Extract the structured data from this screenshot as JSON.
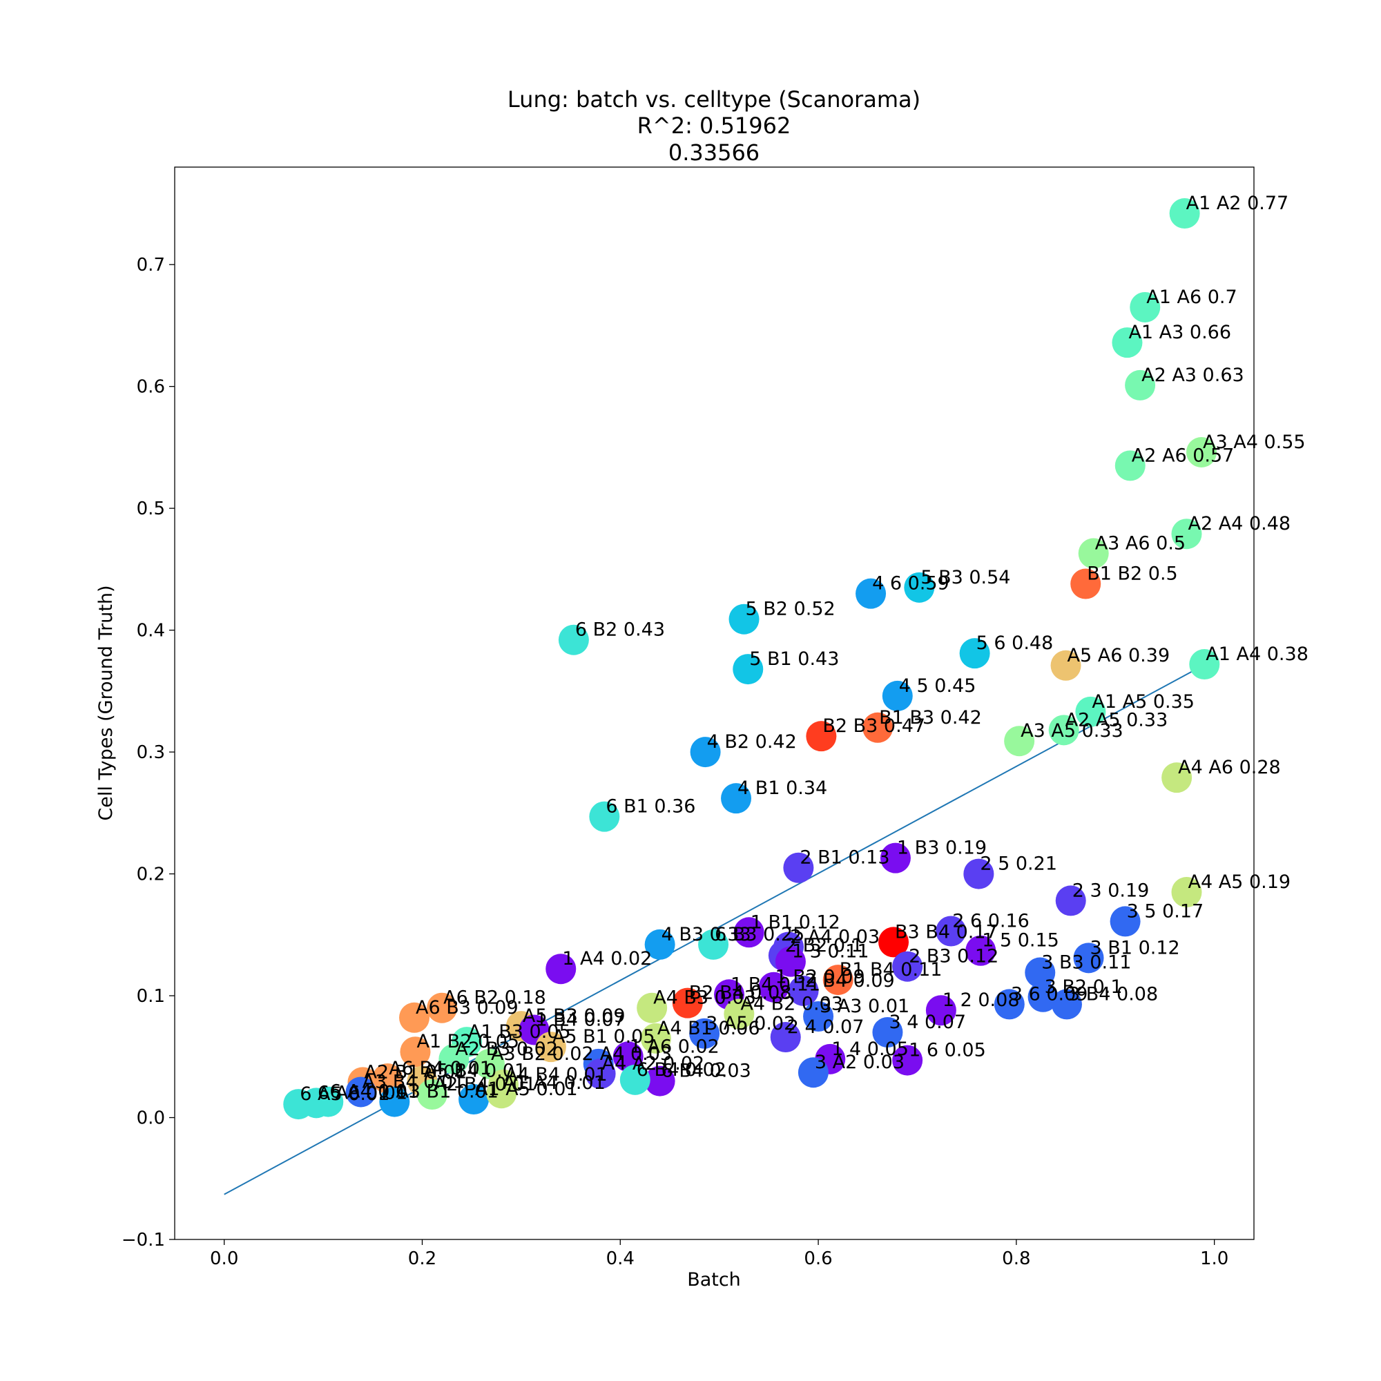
{
  "chart_data": {
    "type": "scatter",
    "title_lines": [
      "Lung: batch vs. celltype (Scanorama)",
      "R^2: 0.51962",
      "0.33566"
    ],
    "xlabel": "Batch",
    "ylabel": "Cell Types (Ground Truth)",
    "xlim": [
      -0.05,
      1.04
    ],
    "ylim": [
      -0.1,
      0.78
    ],
    "x_ticks": [
      0.0,
      0.2,
      0.4,
      0.6,
      0.8,
      1.0
    ],
    "x_tick_labels": [
      "0.0",
      "0.2",
      "0.4",
      "0.6",
      "0.8",
      "1.0"
    ],
    "y_ticks": [
      -0.1,
      0.0,
      0.1,
      0.2,
      0.3,
      0.4,
      0.5,
      0.6,
      0.7
    ],
    "y_tick_labels": [
      "−0.1",
      "0.0",
      "0.1",
      "0.2",
      "0.3",
      "0.4",
      "0.5",
      "0.6",
      "0.7"
    ],
    "grid": false,
    "fit_line": {
      "x": [
        0.0,
        1.0
      ],
      "y": [
        -0.063,
        0.376
      ],
      "color": "#1f77b4"
    },
    "points": [
      {
        "x": 0.97,
        "y": 0.742,
        "label": "A1 A2 0.77",
        "color": "#5cf5c1"
      },
      {
        "x": 0.93,
        "y": 0.665,
        "label": "A1 A6 0.7",
        "color": "#5cf5c1"
      },
      {
        "x": 0.912,
        "y": 0.636,
        "label": "A1 A3 0.66",
        "color": "#5cf5c1"
      },
      {
        "x": 0.925,
        "y": 0.601,
        "label": "A2 A3 0.63",
        "color": "#78f8b0"
      },
      {
        "x": 0.987,
        "y": 0.546,
        "label": "A3 A4 0.55",
        "color": "#98f89c"
      },
      {
        "x": 0.915,
        "y": 0.535,
        "label": "A2 A6 0.57",
        "color": "#78f8b0"
      },
      {
        "x": 0.972,
        "y": 0.479,
        "label": "A2 A4 0.48",
        "color": "#78f8b0"
      },
      {
        "x": 0.878,
        "y": 0.463,
        "label": "A3 A6 0.5",
        "color": "#98f89c"
      },
      {
        "x": 0.87,
        "y": 0.438,
        "label": "B1 B2 0.5",
        "color": "#ff6a3a"
      },
      {
        "x": 0.99,
        "y": 0.372,
        "label": "A1 A4 0.38",
        "color": "#5cf5c1"
      },
      {
        "x": 0.85,
        "y": 0.371,
        "label": "A5 A6 0.39",
        "color": "#edc370"
      },
      {
        "x": 0.875,
        "y": 0.333,
        "label": "A1 A5 0.35",
        "color": "#5cf5c1"
      },
      {
        "x": 0.848,
        "y": 0.318,
        "label": "A2 A5 0.33",
        "color": "#78f8b0"
      },
      {
        "x": 0.803,
        "y": 0.309,
        "label": "A3 A5 0.33",
        "color": "#98f89c"
      },
      {
        "x": 0.962,
        "y": 0.279,
        "label": "A4 A6 0.28",
        "color": "#c5e87f"
      },
      {
        "x": 0.972,
        "y": 0.185,
        "label": "A4 A5 0.19",
        "color": "#c5e87f"
      },
      {
        "x": 0.653,
        "y": 0.43,
        "label": "4 6 0.59",
        "color": "#139df0"
      },
      {
        "x": 0.702,
        "y": 0.435,
        "label": "5 B3 0.54",
        "color": "#12c5e6"
      },
      {
        "x": 0.525,
        "y": 0.409,
        "label": "5 B2 0.52",
        "color": "#12c5e6"
      },
      {
        "x": 0.353,
        "y": 0.392,
        "label": "6 B2 0.43",
        "color": "#3ce4d6"
      },
      {
        "x": 0.758,
        "y": 0.381,
        "label": "5 6 0.48",
        "color": "#12c5e6"
      },
      {
        "x": 0.529,
        "y": 0.368,
        "label": "5 B1 0.43",
        "color": "#12c5e6"
      },
      {
        "x": 0.68,
        "y": 0.346,
        "label": "4 5 0.45",
        "color": "#139df0"
      },
      {
        "x": 0.603,
        "y": 0.313,
        "label": "B2 B3 0.47",
        "color": "#ff3d1f"
      },
      {
        "x": 0.66,
        "y": 0.32,
        "label": "B1 B3 0.42",
        "color": "#ff6a3a"
      },
      {
        "x": 0.486,
        "y": 0.3,
        "label": "4 B2 0.42",
        "color": "#139df0"
      },
      {
        "x": 0.517,
        "y": 0.262,
        "label": "4 B1 0.34",
        "color": "#139df0"
      },
      {
        "x": 0.384,
        "y": 0.247,
        "label": "6 B1 0.36",
        "color": "#3ce4d6"
      },
      {
        "x": 0.678,
        "y": 0.213,
        "label": "1 B3 0.19",
        "color": "#7a0df0"
      },
      {
        "x": 0.58,
        "y": 0.205,
        "label": "2 B1 0.13",
        "color": "#5a3ff2"
      },
      {
        "x": 0.762,
        "y": 0.2,
        "label": "2 5 0.21",
        "color": "#5a3ff2"
      },
      {
        "x": 0.855,
        "y": 0.178,
        "label": "2 3 0.19",
        "color": "#5a3ff2"
      },
      {
        "x": 0.91,
        "y": 0.161,
        "label": "3 5 0.17",
        "color": "#3169f2"
      },
      {
        "x": 0.734,
        "y": 0.153,
        "label": "2 6 0.16",
        "color": "#5a3ff2"
      },
      {
        "x": 0.53,
        "y": 0.152,
        "label": "1 B1 0.12",
        "color": "#7a0df0"
      },
      {
        "x": 0.44,
        "y": 0.142,
        "label": "4 B3 0.33",
        "color": "#139df0"
      },
      {
        "x": 0.494,
        "y": 0.142,
        "label": "6 B3 0.25",
        "color": "#3ce4d6"
      },
      {
        "x": 0.676,
        "y": 0.144,
        "label": "B3 B4 0.17",
        "color": "#ff0000"
      },
      {
        "x": 0.57,
        "y": 0.14,
        "label": "2 A4 0.03",
        "color": "#5a3ff2"
      },
      {
        "x": 0.764,
        "y": 0.137,
        "label": "1 5 0.15",
        "color": "#7a0df0"
      },
      {
        "x": 0.565,
        "y": 0.133,
        "label": "2 B2 0.1",
        "color": "#5a3ff2"
      },
      {
        "x": 0.572,
        "y": 0.128,
        "label": "1 3 0.11",
        "color": "#7a0df0"
      },
      {
        "x": 0.873,
        "y": 0.131,
        "label": "3 B1 0.12",
        "color": "#3169f2"
      },
      {
        "x": 0.69,
        "y": 0.124,
        "label": "2 B3 0.12",
        "color": "#5a3ff2"
      },
      {
        "x": 0.824,
        "y": 0.119,
        "label": "3 B3 0.11",
        "color": "#3169f2"
      },
      {
        "x": 0.34,
        "y": 0.122,
        "label": "1 A4 0.02",
        "color": "#7a0df0"
      },
      {
        "x": 0.62,
        "y": 0.113,
        "label": "B1 B4 0.11",
        "color": "#ff6a3a"
      },
      {
        "x": 0.585,
        "y": 0.104,
        "label": "2 B4 0.09",
        "color": "#5a3ff2"
      },
      {
        "x": 0.555,
        "y": 0.107,
        "label": "1 B2 0.09",
        "color": "#7a0df0"
      },
      {
        "x": 0.51,
        "y": 0.101,
        "label": "1 B4 0.11",
        "color": "#7a0df0"
      },
      {
        "x": 0.827,
        "y": 0.099,
        "label": "3 B2 0.1",
        "color": "#3169f2"
      },
      {
        "x": 0.793,
        "y": 0.093,
        "label": "3 6 0.09",
        "color": "#3169f2"
      },
      {
        "x": 0.851,
        "y": 0.093,
        "label": "3 B4 0.08",
        "color": "#3169f2"
      },
      {
        "x": 0.724,
        "y": 0.088,
        "label": "1 2 0.08",
        "color": "#7a0df0"
      },
      {
        "x": 0.468,
        "y": 0.094,
        "label": "B2 B4 0.08",
        "color": "#ff3d1f"
      },
      {
        "x": 0.432,
        "y": 0.09,
        "label": "A4 B3 0.03",
        "color": "#c5e87f"
      },
      {
        "x": 0.52,
        "y": 0.085,
        "label": "A4 B2 0.03",
        "color": "#c5e87f"
      },
      {
        "x": 0.6,
        "y": 0.083,
        "label": "3 A3 0.01",
        "color": "#3169f2"
      },
      {
        "x": 0.22,
        "y": 0.09,
        "label": "A6 B2 0.18",
        "color": "#ff9a55"
      },
      {
        "x": 0.192,
        "y": 0.082,
        "label": "A6 B3 0.09",
        "color": "#ff9a55"
      },
      {
        "x": 0.3,
        "y": 0.075,
        "label": "A5 B3 0.09",
        "color": "#edc370"
      },
      {
        "x": 0.313,
        "y": 0.072,
        "label": "1 B4 0.07",
        "color": "#7a0df0"
      },
      {
        "x": 0.67,
        "y": 0.07,
        "label": "3 4 0.07",
        "color": "#3169f2"
      },
      {
        "x": 0.567,
        "y": 0.066,
        "label": "2 4 0.07",
        "color": "#5a3ff2"
      },
      {
        "x": 0.485,
        "y": 0.069,
        "label": "3 A5 0.02",
        "color": "#3169f2"
      },
      {
        "x": 0.436,
        "y": 0.065,
        "label": "A4 B1 0.06",
        "color": "#c5e87f"
      },
      {
        "x": 0.245,
        "y": 0.062,
        "label": "A1 B3 0.05",
        "color": "#5cf5c1"
      },
      {
        "x": 0.33,
        "y": 0.058,
        "label": "A5 B1 0.05",
        "color": "#edc370"
      },
      {
        "x": 0.193,
        "y": 0.054,
        "label": "A1 B2 0.05",
        "color": "#ff9a55"
      },
      {
        "x": 0.408,
        "y": 0.05,
        "label": "1 A6 0.02",
        "color": "#7a0df0"
      },
      {
        "x": 0.612,
        "y": 0.048,
        "label": "1 4 0.05",
        "color": "#7a0df0"
      },
      {
        "x": 0.69,
        "y": 0.047,
        "label": "1 6 0.05",
        "color": "#7a0df0"
      },
      {
        "x": 0.378,
        "y": 0.044,
        "label": "A4 0.03",
        "color": "#3169f2"
      },
      {
        "x": 0.232,
        "y": 0.048,
        "label": "A2 B3 0.02",
        "color": "#78f8b0"
      },
      {
        "x": 0.268,
        "y": 0.044,
        "label": "A3 B2 0.02",
        "color": "#98f89c"
      },
      {
        "x": 0.595,
        "y": 0.037,
        "label": "3 A2 0.03",
        "color": "#3169f2"
      },
      {
        "x": 0.38,
        "y": 0.036,
        "label": "A4 A2 0.02",
        "color": "#5a3ff2"
      },
      {
        "x": 0.44,
        "y": 0.03,
        "label": "6 B4 0.03",
        "color": "#7a0df0"
      },
      {
        "x": 0.415,
        "y": 0.031,
        "label": "6 B4 0.02",
        "color": "#3ce4d6"
      },
      {
        "x": 0.165,
        "y": 0.032,
        "label": "A6 B4 0.01",
        "color": "#ff9a55"
      },
      {
        "x": 0.2,
        "y": 0.03,
        "label": "A5 B4 0.01",
        "color": "#edc370"
      },
      {
        "x": 0.282,
        "y": 0.027,
        "label": "A4 B4 0.01",
        "color": "#c5e87f"
      },
      {
        "x": 0.14,
        "y": 0.029,
        "label": "A2 B1 0.01",
        "color": "#ff9a55"
      },
      {
        "x": 0.138,
        "y": 0.021,
        "label": "A3 B4 0.01",
        "color": "#3169f2"
      },
      {
        "x": 0.21,
        "y": 0.019,
        "label": "A2 B4 0.01",
        "color": "#98f89c"
      },
      {
        "x": 0.252,
        "y": 0.015,
        "label": "A1 A5 0.01",
        "color": "#139df0"
      },
      {
        "x": 0.28,
        "y": 0.02,
        "label": "A1 A4 0.01",
        "color": "#c5e87f"
      },
      {
        "x": 0.172,
        "y": 0.013,
        "label": "A3 B1 0.01",
        "color": "#139df0"
      },
      {
        "x": 0.105,
        "y": 0.013,
        "label": "6 A4 0.01",
        "color": "#3ce4d6"
      },
      {
        "x": 0.093,
        "y": 0.012,
        "label": "6 A6 0.01",
        "color": "#3ce4d6"
      },
      {
        "x": 0.075,
        "y": 0.011,
        "label": "6 A5 0.01",
        "color": "#3ce4d6"
      }
    ]
  }
}
